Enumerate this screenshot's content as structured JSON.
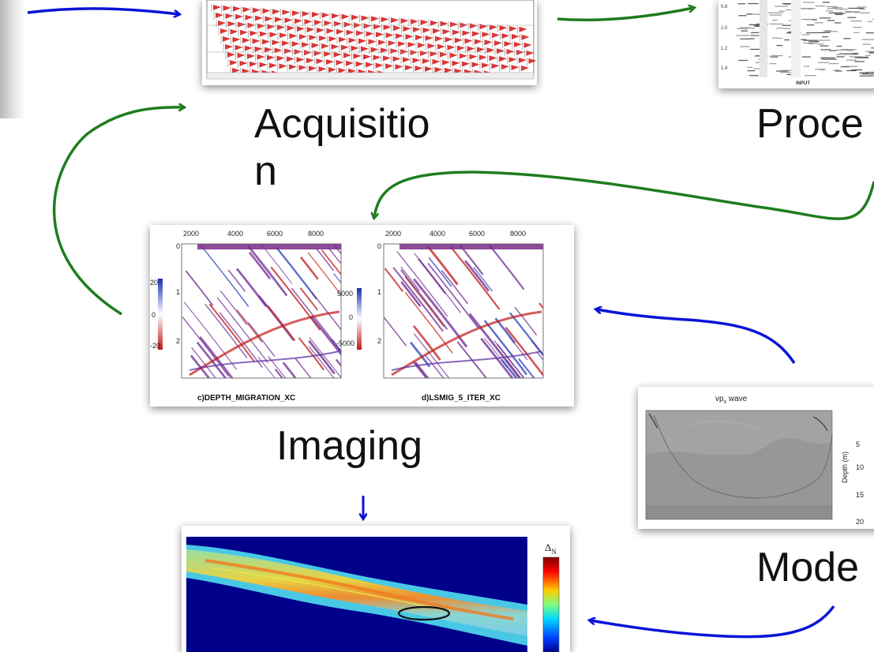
{
  "stages": {
    "acquisition": "Acquisitio\nn",
    "processing": "Proce",
    "imaging": "Imaging",
    "modeling": "Mode"
  },
  "processing_panel": {
    "caption": "INPUT",
    "yticks": [
      "0.8",
      "1.0",
      "1.2",
      "1.4"
    ]
  },
  "imaging_panel": {
    "left": {
      "caption": "c)DEPTH_MIGRATION_XC",
      "xticks": [
        "2000",
        "4000",
        "6000",
        "8000"
      ],
      "yticks": [
        "0",
        "1",
        "2"
      ],
      "colorbar": [
        "20",
        "0",
        "-20"
      ]
    },
    "right": {
      "caption": "d)LSMIG_5_ITER_XC",
      "xticks": [
        "2000",
        "4000",
        "6000",
        "8000"
      ],
      "yticks": [
        "0",
        "1",
        "2"
      ],
      "colorbar": [
        "5000",
        "0",
        "-5000"
      ]
    }
  },
  "modeling_panel": {
    "title": "vp",
    "title_sub": "x",
    "title_suffix": " wave",
    "ylabel": "Depth (m)",
    "yticks": [
      "5",
      "10",
      "15",
      "20"
    ]
  },
  "inversion_panel": {
    "colorbar_label": "Δ",
    "colorbar_sub": "N"
  },
  "colors": {
    "blue_arrow": "#0a14d6",
    "green_arrow": "#1e7d1e",
    "seismic_red": "#d21414",
    "seismic_purple": "#7a2a8a"
  }
}
